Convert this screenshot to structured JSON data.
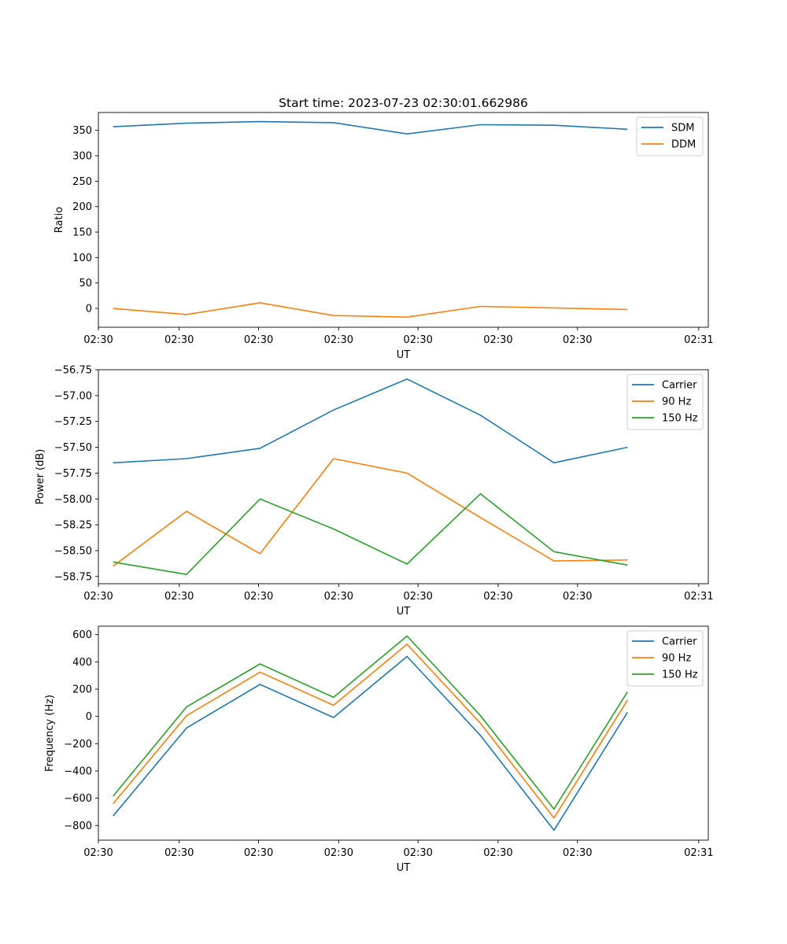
{
  "figure_title": "Start time: 2023-07-23 02:30:01.662986",
  "x_tick_labels": [
    "02:30",
    "02:30",
    "02:30",
    "02:30",
    "02:30",
    "02:30",
    "02:30",
    "02:31"
  ],
  "colors": {
    "blue": "#1f77b4",
    "orange": "#ff7f0e",
    "green": "#2ca02c"
  },
  "chart_data": [
    {
      "type": "line",
      "title": "Start time: 2023-07-23 02:30:01.662986",
      "xlabel": "UT",
      "ylabel": "Ratio",
      "x": [
        1,
        2,
        3,
        4,
        5,
        6,
        7,
        8
      ],
      "xlim": [
        0.8,
        9.1
      ],
      "ylim": [
        -37,
        385
      ],
      "yticks": [
        0,
        50,
        100,
        150,
        200,
        250,
        300,
        350
      ],
      "legend": "top-right",
      "series": [
        {
          "name": "SDM",
          "color": "#1f77b4",
          "values": [
            357,
            364,
            367,
            365,
            343,
            361,
            360,
            352
          ]
        },
        {
          "name": "DDM",
          "color": "#ff7f0e",
          "values": [
            0,
            -12,
            11,
            -14,
            -17,
            4,
            1,
            -2
          ]
        }
      ]
    },
    {
      "type": "line",
      "title": "",
      "xlabel": "UT",
      "ylabel": "Power (dB)",
      "x": [
        1,
        2,
        3,
        4,
        5,
        6,
        7,
        8
      ],
      "xlim": [
        0.8,
        9.1
      ],
      "ylim": [
        -58.82,
        -56.75
      ],
      "yticks": [
        -58.75,
        -58.5,
        -58.25,
        -58.0,
        -57.75,
        -57.5,
        -57.25,
        -57.0,
        -56.75
      ],
      "ytick_labels": [
        "−58.75",
        "−58.50",
        "−58.25",
        "−58.00",
        "−57.75",
        "−57.50",
        "−57.25",
        "−57.00",
        "−56.75"
      ],
      "legend": "top-right",
      "series": [
        {
          "name": "Carrier",
          "color": "#1f77b4",
          "values": [
            -57.65,
            -57.61,
            -57.51,
            -57.14,
            -56.84,
            -57.19,
            -57.65,
            -57.5
          ]
        },
        {
          "name": "90 Hz",
          "color": "#ff7f0e",
          "values": [
            -58.65,
            -58.12,
            -58.53,
            -57.61,
            -57.75,
            -58.18,
            -58.6,
            -58.59
          ]
        },
        {
          "name": "150 Hz",
          "color": "#2ca02c",
          "values": [
            -58.61,
            -58.73,
            -58.0,
            -58.29,
            -58.63,
            -57.95,
            -58.51,
            -58.64
          ]
        }
      ]
    },
    {
      "type": "line",
      "title": "",
      "xlabel": "UT",
      "ylabel": "Frequency (Hz)",
      "x": [
        1,
        2,
        3,
        4,
        5,
        6,
        7,
        8
      ],
      "xlim": [
        0.8,
        9.1
      ],
      "ylim": [
        -908,
        662
      ],
      "yticks": [
        -800,
        -600,
        -400,
        -200,
        0,
        200,
        400,
        600
      ],
      "ytick_labels": [
        "−800",
        "−600",
        "−400",
        "−200",
        "0",
        "200",
        "400",
        "600"
      ],
      "legend": "top-right",
      "series": [
        {
          "name": "Carrier",
          "color": "#1f77b4",
          "values": [
            -730,
            -85,
            235,
            -8,
            440,
            -140,
            -835,
            30
          ]
        },
        {
          "name": "90 Hz",
          "color": "#ff7f0e",
          "values": [
            -640,
            5,
            325,
            82,
            530,
            -50,
            -745,
            120
          ]
        },
        {
          "name": "150 Hz",
          "color": "#2ca02c",
          "values": [
            -585,
            70,
            385,
            140,
            590,
            5,
            -680,
            180
          ]
        }
      ]
    }
  ]
}
